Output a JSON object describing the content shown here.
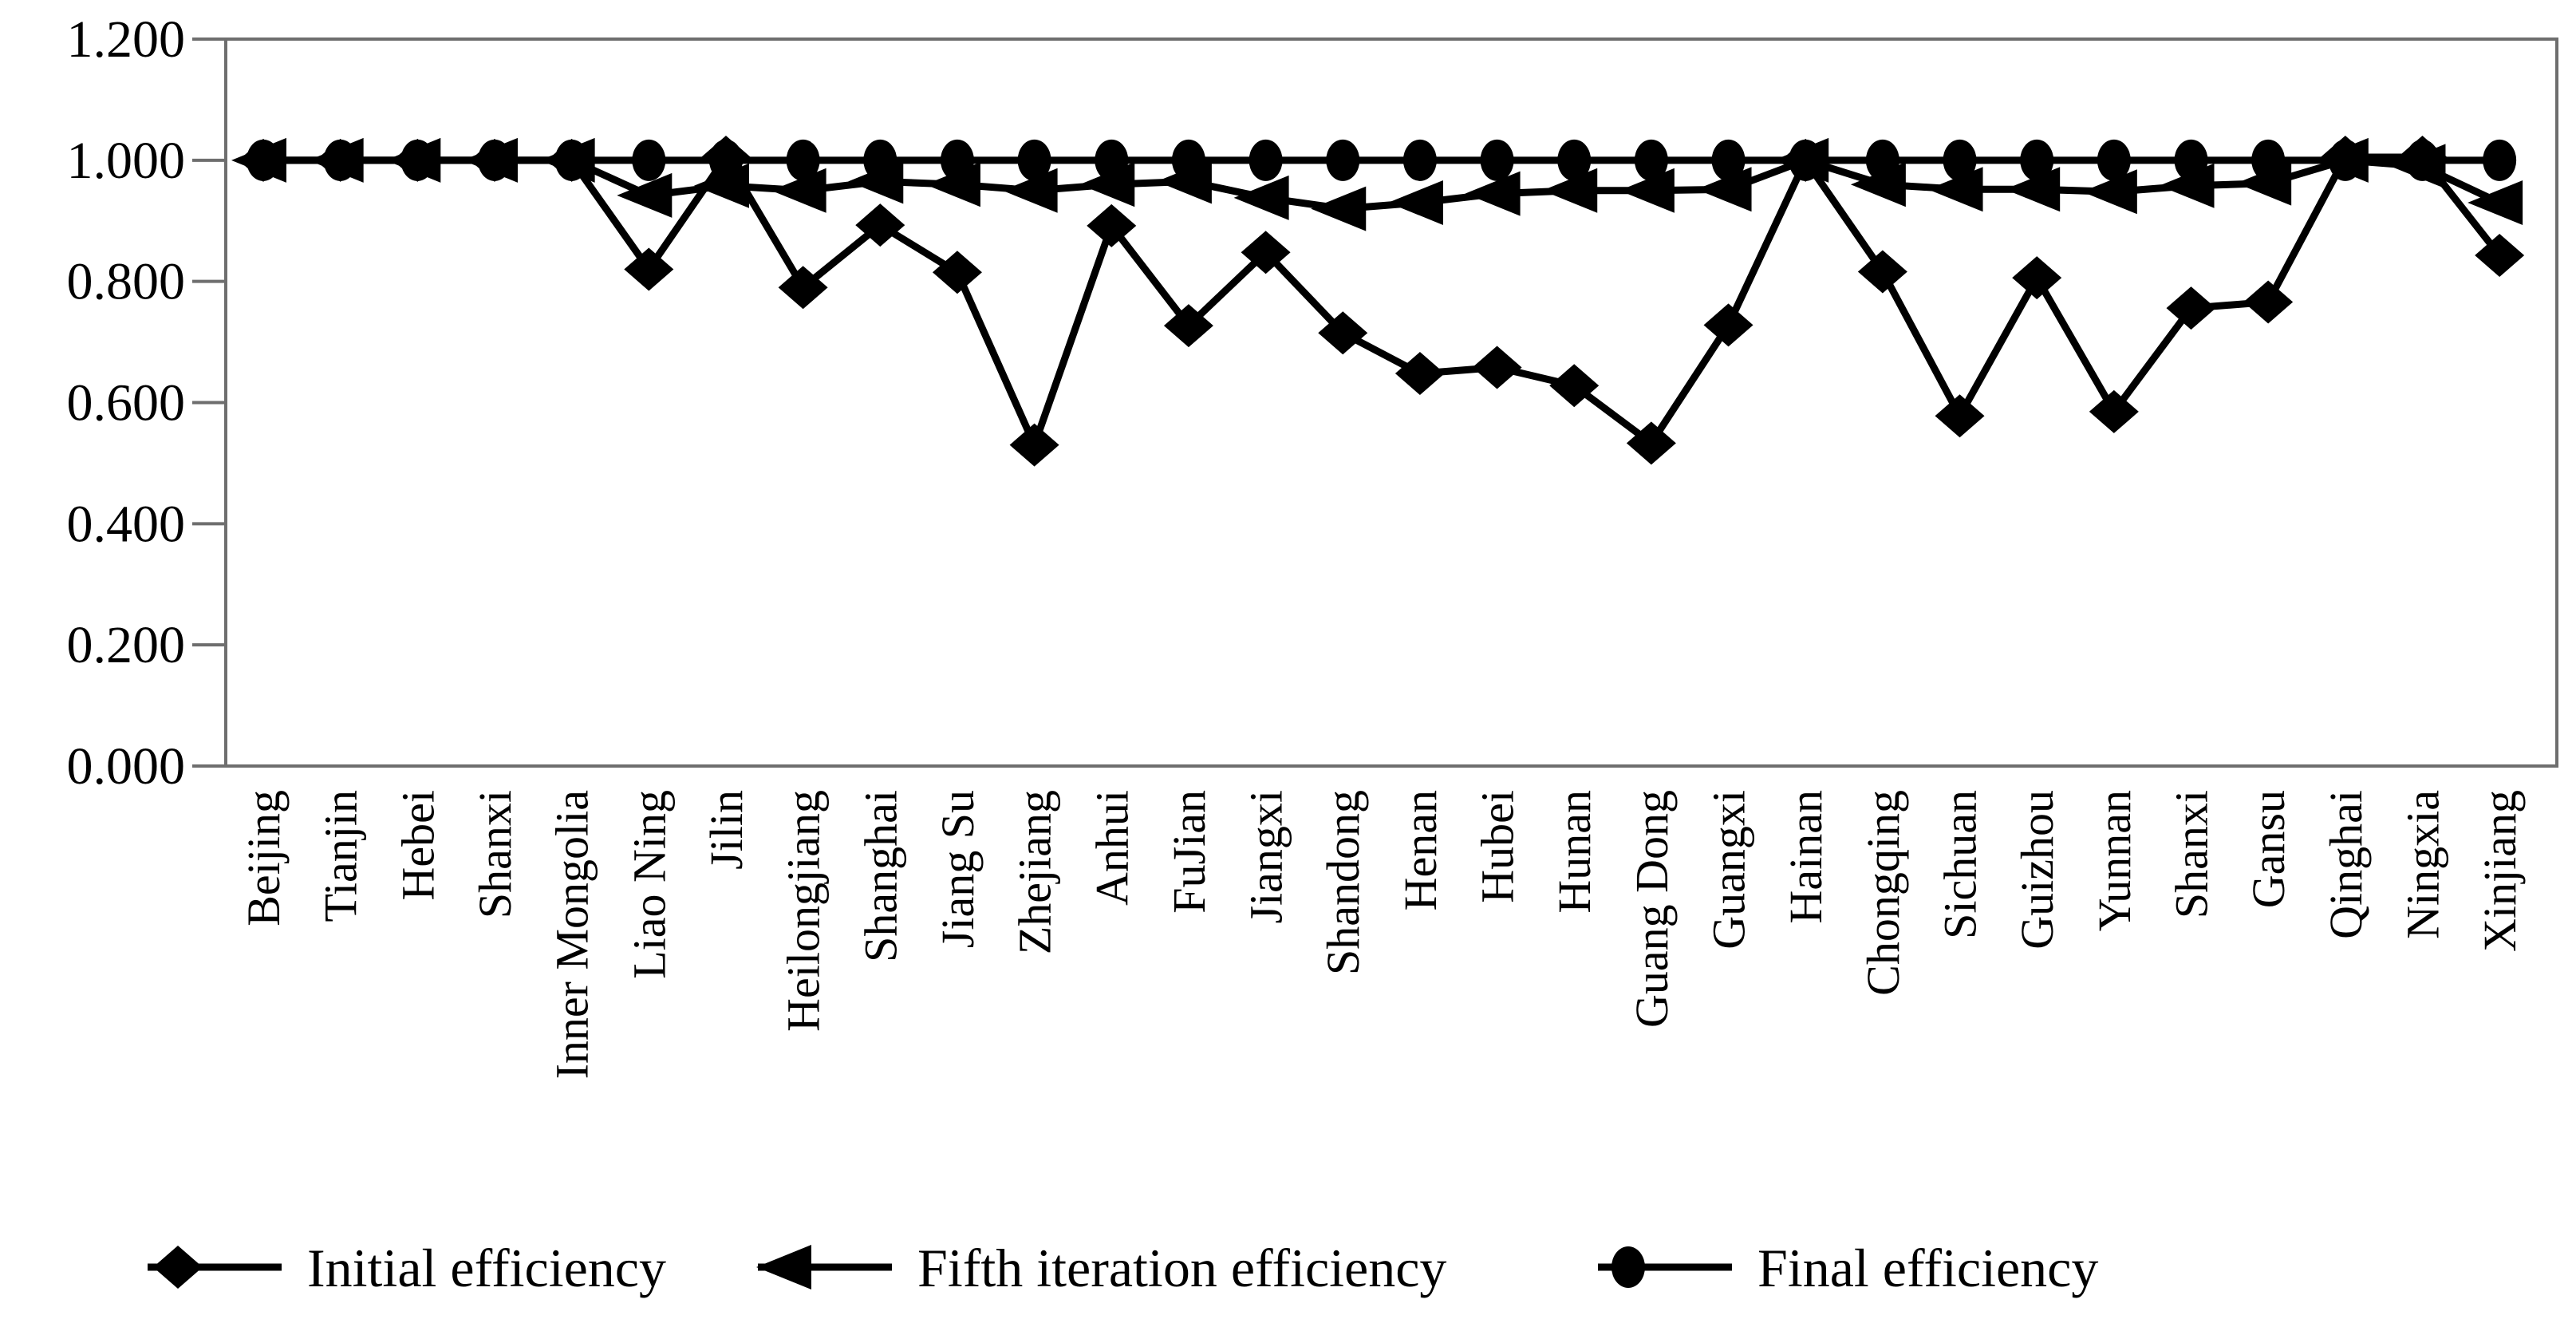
{
  "chart_data": {
    "type": "line",
    "title": "",
    "xlabel": "",
    "ylabel": "",
    "ylim": [
      0,
      1.2
    ],
    "ytick_labels": [
      "0.000",
      "0.200",
      "0.400",
      "0.600",
      "0.800",
      "1.000",
      "1.200"
    ],
    "ytick_values": [
      0,
      0.2,
      0.4,
      0.6,
      0.8,
      1.0,
      1.2
    ],
    "grid": false,
    "legend_position": "bottom",
    "colors": {
      "series": "#000000",
      "frame": "#6e6e6e",
      "tick": "#6e6e6e",
      "text": "#000000",
      "background": "#ffffff"
    },
    "categories": [
      "Beijing",
      "Tianjin",
      "Hebei",
      "Shanxi",
      "Inner Mongolia",
      "Liao Ning",
      "Jilin",
      "Heilongjiang",
      "Shanghai",
      "Jiang Su",
      "Zhejiang",
      "Anhui",
      "FuJian",
      "Jiangxi",
      "Shandong",
      "Henan",
      "Hubei",
      "Hunan",
      "Guang Dong",
      "Guangxi",
      "Hainan",
      "Chongqing",
      "Sichuan",
      "Guizhou",
      "Yunnan",
      "Shanxi",
      "Gansu",
      "Qinghai",
      "Ningxia",
      "Xinjiang"
    ],
    "series": [
      {
        "name": "Initial efficiency",
        "marker": "diamond",
        "values": [
          1.0,
          1.0,
          1.0,
          1.0,
          1.0,
          0.82,
          1.005,
          0.79,
          0.893,
          0.815,
          0.53,
          0.892,
          0.727,
          0.848,
          0.715,
          0.648,
          0.658,
          0.628,
          0.533,
          0.728,
          1.0,
          0.816,
          0.578,
          0.806,
          0.585,
          0.756,
          0.766,
          1.005,
          1.005,
          0.843
        ]
      },
      {
        "name": "Fifth iteration efficiency",
        "marker": "left-triangle",
        "values": [
          1.0,
          1.0,
          1.0,
          1.0,
          1.0,
          0.942,
          0.958,
          0.95,
          0.965,
          0.96,
          0.95,
          0.96,
          0.965,
          0.938,
          0.92,
          0.93,
          0.945,
          0.95,
          0.95,
          0.952,
          1.0,
          0.96,
          0.952,
          0.952,
          0.948,
          0.958,
          0.962,
          1.0,
          0.99,
          0.93
        ]
      },
      {
        "name": "Final efficiency",
        "marker": "circle",
        "values": [
          1.0,
          1.0,
          1.0,
          1.0,
          1.0,
          1.0,
          1.0,
          1.0,
          1.0,
          1.0,
          1.0,
          1.0,
          1.0,
          1.0,
          1.0,
          1.0,
          1.0,
          1.0,
          1.0,
          1.0,
          1.0,
          1.0,
          1.0,
          1.0,
          1.0,
          1.0,
          1.0,
          1.0,
          1.0,
          1.0
        ]
      }
    ]
  }
}
